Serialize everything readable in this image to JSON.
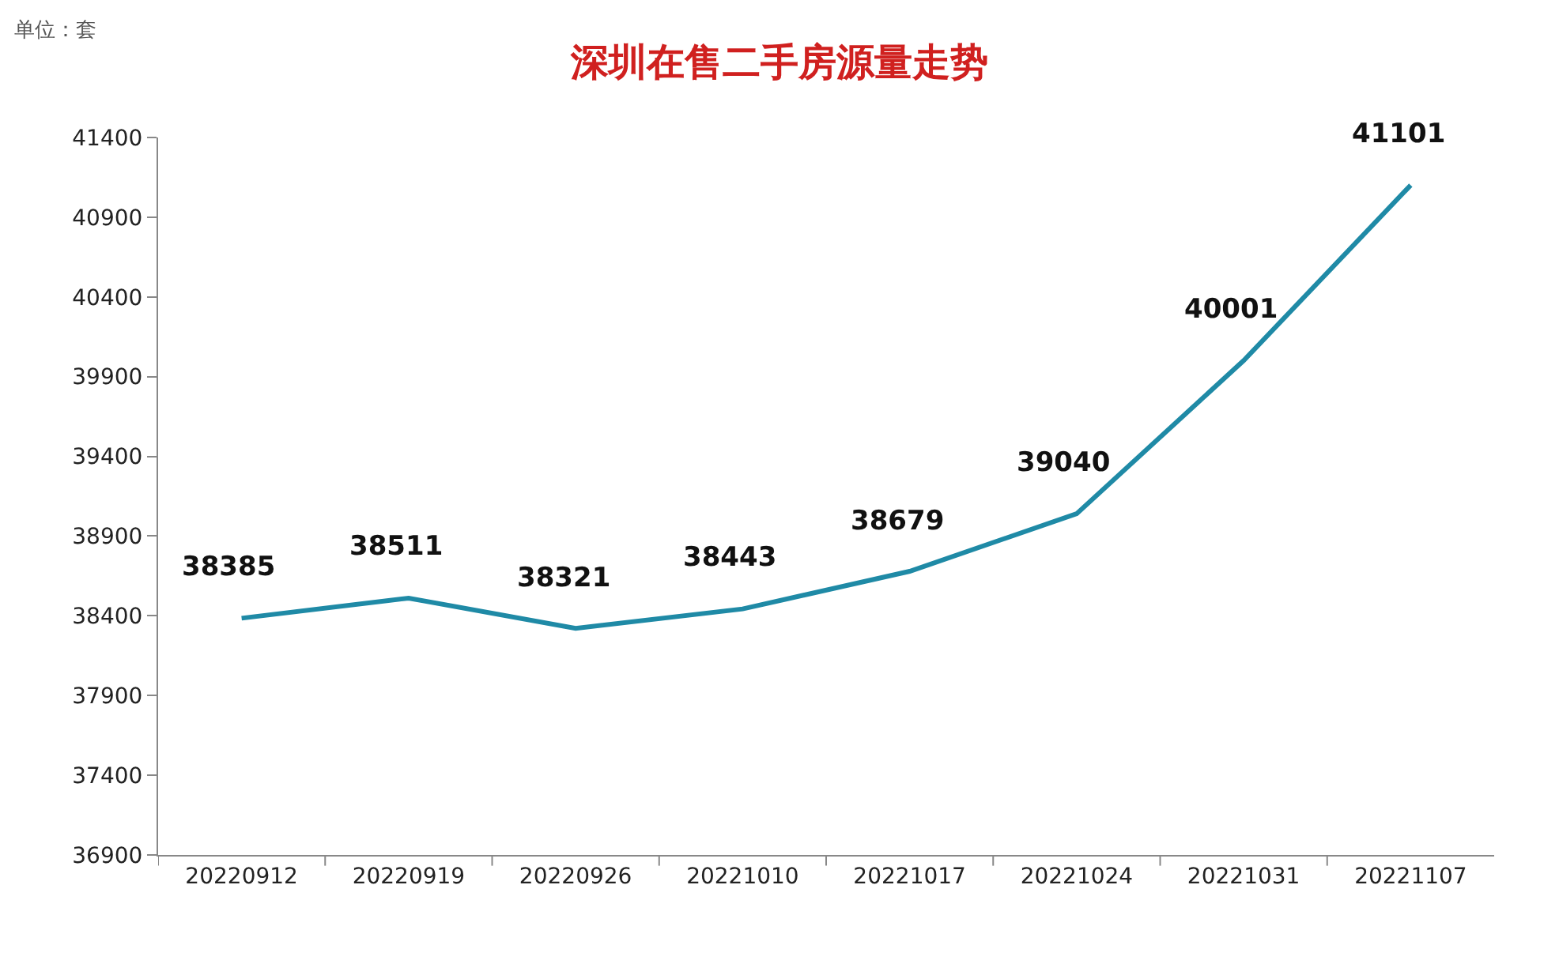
{
  "chart_data": {
    "type": "line",
    "title": "深圳在售二手房源量走势",
    "annotations": [
      "单位：套"
    ],
    "categories": [
      "20220912",
      "20220919",
      "20220926",
      "20221010",
      "20221017",
      "20221024",
      "20221031",
      "20221107"
    ],
    "series": [
      {
        "color": "#1f8aa6",
        "values": [
          38385,
          38511,
          38321,
          38443,
          38679,
          39040,
          40001,
          41101
        ]
      }
    ],
    "ylim": [
      36900,
      41400
    ],
    "yticks": [
      36900,
      37400,
      37900,
      38400,
      38900,
      39400,
      39900,
      40400,
      40900,
      41400
    ],
    "grid": false,
    "data_labels": true,
    "marker": "none",
    "line_style": "solid"
  }
}
